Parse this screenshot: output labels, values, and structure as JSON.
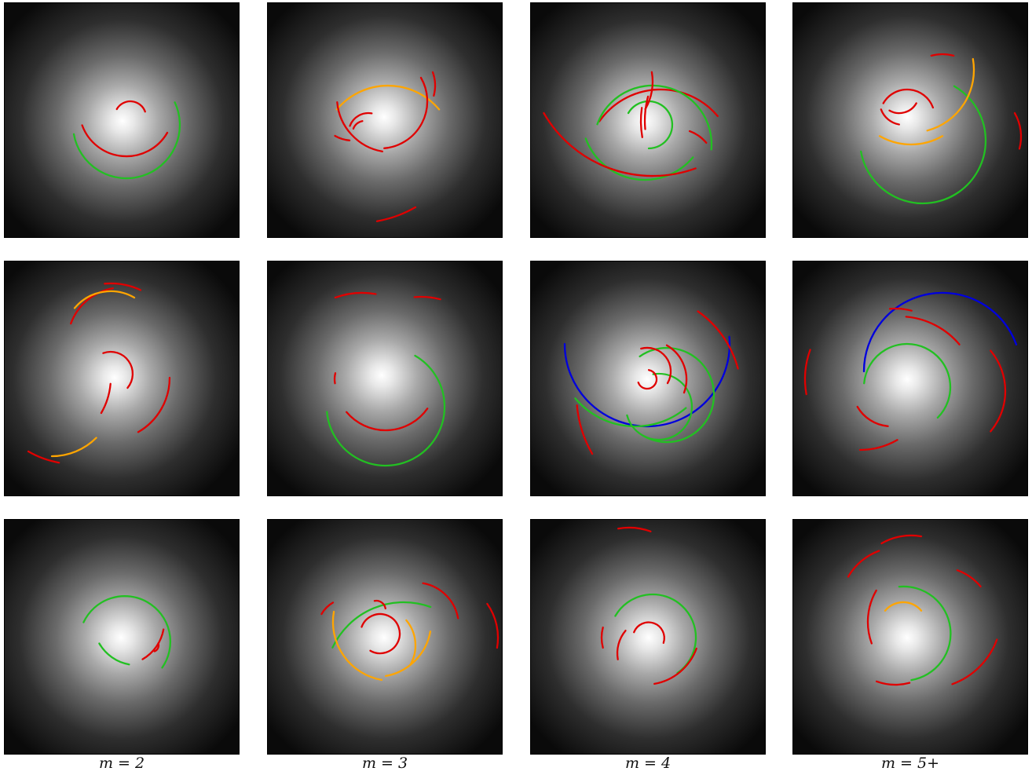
{
  "column_labels": [
    "m = 2",
    "m = 3",
    "m = 4",
    "m = 5+"
  ],
  "arm_colors": {
    "red": "#e00000",
    "green": "#22c022",
    "orange": "#ffa500",
    "blue": "#0000dd"
  },
  "panels": [
    {
      "arms": [
        {
          "c": "red",
          "r": 45,
          "a1": -150,
          "a2": -30,
          "cx": -25,
          "cy": -130
        },
        {
          "c": "green",
          "r": 68,
          "a1": 170,
          "a2": -25,
          "cx": 5,
          "cy": 5
        },
        {
          "c": "red",
          "r": 20,
          "a1": -150,
          "a2": -20,
          "cx": 10,
          "cy": -5
        },
        {
          "c": "red",
          "r": 60,
          "a1": 160,
          "a2": 30,
          "cx": 5,
          "cy": -15
        }
      ]
    },
    {
      "arms": [
        {
          "c": "orange",
          "r": 85,
          "a1": -140,
          "a2": -40,
          "cx": 5,
          "cy": 45
        },
        {
          "c": "red",
          "r": 60,
          "a1": -30,
          "a2": 85,
          "cx": -5,
          "cy": -20
        },
        {
          "c": "red",
          "r": 25,
          "a1": -160,
          "a2": -80,
          "cx": -20,
          "cy": 20
        },
        {
          "c": "red",
          "r": 15,
          "a1": -160,
          "a2": -100,
          "cx": -25,
          "cy": 20
        },
        {
          "c": "red",
          "r": 70,
          "a1": 100,
          "a2": 175,
          "cx": 10,
          "cy": -25
        },
        {
          "c": "red",
          "r": 45,
          "a1": 95,
          "a2": 120,
          "cx": -40,
          "cy": -15
        },
        {
          "c": "red",
          "r": 150,
          "a1": 60,
          "a2": 80,
          "cx": -35,
          "cy": -15
        },
        {
          "c": "red",
          "r": 50,
          "a1": -20,
          "a2": 15,
          "cx": 15,
          "cy": -40
        }
      ]
    },
    {
      "arms": [
        {
          "c": "red",
          "r": 95,
          "a1": -145,
          "a2": -40,
          "cx": 20,
          "cy": 55
        },
        {
          "c": "red",
          "r": 50,
          "a1": -70,
          "a2": -40,
          "cx": 40,
          "cy": 60
        },
        {
          "c": "green",
          "r": 75,
          "a1": -160,
          "a2": 5,
          "cx": 10,
          "cy": 30
        },
        {
          "c": "green",
          "r": 30,
          "a1": -150,
          "a2": 90,
          "cx": 5,
          "cy": 5
        },
        {
          "c": "green",
          "r": 80,
          "a1": 160,
          "a2": 40,
          "cx": 0,
          "cy": -5
        },
        {
          "c": "red",
          "r": 160,
          "a1": 70,
          "a2": 150,
          "cx": 10,
          "cy": -90
        },
        {
          "c": "red",
          "r": 70,
          "a1": -10,
          "a2": 30,
          "cx": -60,
          "cy": -50
        },
        {
          "c": "red",
          "r": 120,
          "a1": 175,
          "a2": 195,
          "cx": 120,
          "cy": 0
        },
        {
          "c": "red",
          "r": 120,
          "a1": 170,
          "a2": 188,
          "cx": 115,
          "cy": 0
        }
      ]
    },
    {
      "arms": [
        {
          "c": "green",
          "r": 80,
          "a1": 170,
          "a2": -60,
          "cx": 20,
          "cy": 30
        },
        {
          "c": "red",
          "r": 35,
          "a1": -150,
          "a2": -20,
          "cx": 0,
          "cy": 0
        },
        {
          "c": "red",
          "r": 30,
          "a1": 160,
          "a2": 100,
          "cx": -5,
          "cy": -20
        },
        {
          "c": "red",
          "r": 25,
          "a1": 30,
          "a2": 120,
          "cx": -10,
          "cy": -30
        },
        {
          "c": "orange",
          "r": 80,
          "a1": -10,
          "a2": 75,
          "cx": 5,
          "cy": -60
        },
        {
          "c": "orange",
          "r": 80,
          "a1": 60,
          "a2": 120,
          "cx": 5,
          "cy": -45
        },
        {
          "c": "red",
          "r": 55,
          "a1": -105,
          "a2": -75,
          "cx": 45,
          "cy": -25
        },
        {
          "c": "red",
          "r": 60,
          "a1": -30,
          "a2": 15,
          "cx": 85,
          "cy": 25
        }
      ]
    },
    {
      "arms": [
        {
          "c": "red",
          "r": 70,
          "a1": -160,
          "a2": -100,
          "cx": 10,
          "cy": -45
        },
        {
          "c": "orange",
          "r": 60,
          "a1": -140,
          "a2": -60,
          "cx": -5,
          "cy": -50
        },
        {
          "c": "red",
          "r": 28,
          "a1": -110,
          "a2": 40,
          "cx": -5,
          "cy": -5
        },
        {
          "c": "red",
          "r": 80,
          "a1": 60,
          "a2": 0,
          "cx": -10,
          "cy": 0
        },
        {
          "c": "orange",
          "r": 80,
          "a1": 90,
          "a2": 45,
          "cx": -80,
          "cy": 20
        },
        {
          "c": "red",
          "r": 120,
          "a1": 100,
          "a2": 120,
          "cx": -50,
          "cy": -10
        },
        {
          "c": "red",
          "r": 90,
          "a1": -95,
          "a2": -65,
          "cx": -5,
          "cy": -30
        },
        {
          "c": "red",
          "r": 90,
          "a1": 30,
          "a2": 5,
          "cx": -95,
          "cy": 0
        }
      ]
    },
    {
      "arms": [
        {
          "c": "red",
          "r": 100,
          "a1": -110,
          "a2": -80,
          "cx": -25,
          "cy": -5
        },
        {
          "c": "red",
          "r": 95,
          "a1": -95,
          "a2": -75,
          "cx": 50,
          "cy": -5
        },
        {
          "c": "green",
          "r": 75,
          "a1": 175,
          "a2": -60,
          "cx": 5,
          "cy": 40
        },
        {
          "c": "red",
          "r": 30,
          "a1": 170,
          "a2": 195,
          "cx": -30,
          "cy": 5
        },
        {
          "c": "red",
          "r": 65,
          "a1": 35,
          "a2": 140,
          "cx": 5,
          "cy": 5
        }
      ]
    },
    {
      "arms": [
        {
          "c": "blue",
          "r": 105,
          "a1": 180,
          "a2": -5,
          "cx": 0,
          "cy": -45
        },
        {
          "c": "green",
          "r": 42,
          "a1": -100,
          "a2": 165,
          "cx": 15,
          "cy": 35
        },
        {
          "c": "green",
          "r": 60,
          "a1": -125,
          "a2": 120,
          "cx": 25,
          "cy": 20
        },
        {
          "c": "green",
          "r": 100,
          "a1": 50,
          "a2": 140,
          "cx": -15,
          "cy": -40
        },
        {
          "c": "red",
          "r": 12,
          "a1": -80,
          "a2": 160,
          "cx": 0,
          "cy": 0
        },
        {
          "c": "red",
          "r": 30,
          "a1": -105,
          "a2": 30,
          "cx": 0,
          "cy": -10
        },
        {
          "c": "red",
          "r": 50,
          "a1": -60,
          "a2": 20,
          "cx": 0,
          "cy": 0
        },
        {
          "c": "red",
          "r": 130,
          "a1": -55,
          "a2": -15,
          "cx": -10,
          "cy": 20
        },
        {
          "c": "red",
          "r": 150,
          "a1": 150,
          "a2": 175,
          "cx": 60,
          "cy": 20
        }
      ]
    },
    {
      "arms": [
        {
          "c": "blue",
          "r": 100,
          "a1": -180,
          "a2": -20,
          "cx": 45,
          "cy": -10
        },
        {
          "c": "green",
          "r": 55,
          "a1": -175,
          "a2": 45,
          "cx": 0,
          "cy": 10
        },
        {
          "c": "red",
          "r": 100,
          "a1": -85,
          "a2": -40,
          "cx": -10,
          "cy": 20
        },
        {
          "c": "red",
          "r": 80,
          "a1": -40,
          "a2": 40,
          "cx": 45,
          "cy": 15
        },
        {
          "c": "red",
          "r": 50,
          "a1": 150,
          "a2": 95,
          "cx": -20,
          "cy": 10
        },
        {
          "c": "red",
          "r": 80,
          "a1": -95,
          "a2": -75,
          "cx": -15,
          "cy": -10
        },
        {
          "c": "red",
          "r": 110,
          "a1": 170,
          "a2": 200,
          "cx": -20,
          "cy": 0
        },
        {
          "c": "red",
          "r": 95,
          "a1": 90,
          "a2": 60,
          "cx": -60,
          "cy": -5
        }
      ]
    },
    {
      "arms": [
        {
          "c": "green",
          "r": 58,
          "a1": -155,
          "a2": 35,
          "cx": 5,
          "cy": 5
        },
        {
          "c": "green",
          "r": 55,
          "a1": 100,
          "a2": 150,
          "cx": 20,
          "cy": -20
        },
        {
          "c": "red",
          "r": 8,
          "a1": -20,
          "a2": 70,
          "cx": 40,
          "cy": 10
        },
        {
          "c": "red",
          "r": 55,
          "a1": 10,
          "a2": 60,
          "cx": 0,
          "cy": -20
        }
      ]
    },
    {
      "arms": [
        {
          "c": "green",
          "r": 100,
          "a1": -155,
          "a2": -70,
          "cx": 25,
          "cy": 55
        },
        {
          "c": "red",
          "r": 25,
          "a1": -160,
          "a2": 120,
          "cx": -5,
          "cy": -5
        },
        {
          "c": "red",
          "r": 12,
          "a1": -100,
          "a2": -10,
          "cx": -10,
          "cy": -35
        },
        {
          "c": "orange",
          "r": 50,
          "a1": -40,
          "a2": 30,
          "cx": -10,
          "cy": 10
        },
        {
          "c": "orange",
          "r": 70,
          "a1": 10,
          "a2": 80,
          "cx": -10,
          "cy": -20
        },
        {
          "c": "orange",
          "r": 75,
          "a1": 100,
          "a2": 190,
          "cx": 10,
          "cy": -20
        },
        {
          "c": "red",
          "r": 55,
          "a1": -80,
          "a2": -10,
          "cx": 40,
          "cy": -15
        },
        {
          "c": "red",
          "r": 40,
          "a1": -150,
          "a2": -120,
          "cx": -45,
          "cy": -10
        },
        {
          "c": "red",
          "r": 75,
          "a1": -35,
          "a2": 10,
          "cx": 70,
          "cy": 0
        }
      ]
    },
    {
      "arms": [
        {
          "c": "green",
          "r": 55,
          "a1": -150,
          "a2": 55,
          "cx": 5,
          "cy": 0
        },
        {
          "c": "red",
          "r": 20,
          "a1": -160,
          "a2": 20,
          "cx": 0,
          "cy": 0
        },
        {
          "c": "red",
          "r": 45,
          "a1": 170,
          "a2": 220,
          "cx": 5,
          "cy": 20
        },
        {
          "c": "red",
          "r": 70,
          "a1": 20,
          "a2": 80,
          "cx": -5,
          "cy": -10
        },
        {
          "c": "red",
          "r": 80,
          "a1": -100,
          "a2": -70,
          "cx": -25,
          "cy": -60
        },
        {
          "c": "red",
          "r": 50,
          "a1": 165,
          "a2": 195,
          "cx": -10,
          "cy": 0
        }
      ]
    },
    {
      "arms": [
        {
          "c": "orange",
          "r": 30,
          "a1": -140,
          "a2": -40,
          "cx": -5,
          "cy": -15
        },
        {
          "c": "green",
          "r": 60,
          "a1": -95,
          "a2": 80,
          "cx": -5,
          "cy": -5
        },
        {
          "c": "red",
          "r": 75,
          "a1": -150,
          "a2": -110,
          "cx": -10,
          "cy": -40
        },
        {
          "c": "red",
          "r": 75,
          "a1": -120,
          "a2": -80,
          "cx": 5,
          "cy": -55
        },
        {
          "c": "red",
          "r": 80,
          "a1": 160,
          "a2": 210,
          "cx": 30,
          "cy": -20
        },
        {
          "c": "red",
          "r": 70,
          "a1": 110,
          "a2": 75,
          "cx": -15,
          "cy": -10
        },
        {
          "c": "red",
          "r": 95,
          "a1": 70,
          "a2": 20,
          "cx": 25,
          "cy": -30
        },
        {
          "c": "red",
          "r": 70,
          "a1": -70,
          "a2": -40,
          "cx": 40,
          "cy": -20
        }
      ]
    }
  ]
}
